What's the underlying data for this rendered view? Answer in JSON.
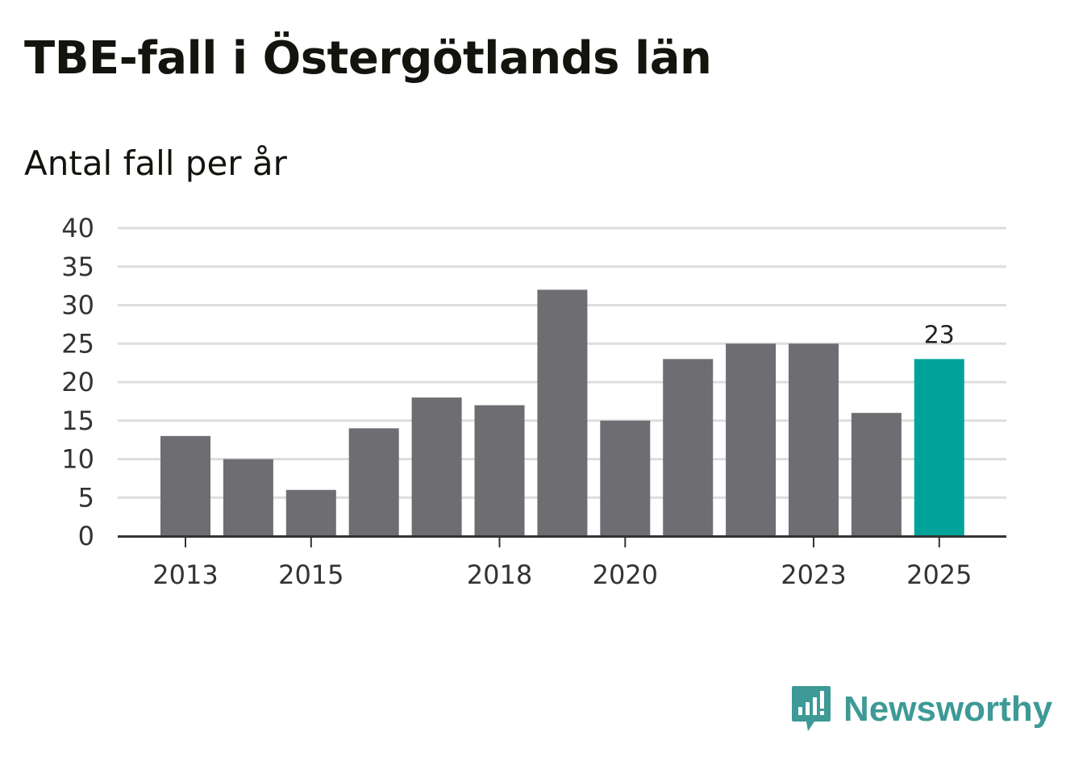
{
  "chart_data": {
    "type": "bar",
    "title": "TBE-fall i Östergötlands län",
    "subtitle": "Antal fall per år",
    "categories": [
      "2013",
      "2014",
      "2015",
      "2016",
      "2017",
      "2018",
      "2019",
      "2020",
      "2021",
      "2022",
      "2023",
      "2024",
      "2025"
    ],
    "values": [
      13,
      10,
      6,
      14,
      18,
      17,
      32,
      15,
      23,
      25,
      25,
      16,
      23
    ],
    "x_tick_labels": [
      "2013",
      "2015",
      "2018",
      "2020",
      "2023",
      "2025"
    ],
    "y_ticks": [
      0,
      5,
      10,
      15,
      20,
      25,
      30,
      35,
      40
    ],
    "ylim": [
      0,
      40
    ],
    "xlabel": "",
    "ylabel": "",
    "grid": true,
    "highlight": {
      "category": "2025",
      "label": "23"
    },
    "colors": {
      "bar": "#6e6d72",
      "highlight": "#00a39a",
      "grid": "#dddddd",
      "axis": "#333333"
    }
  },
  "brand": {
    "name": "Newsworthy",
    "icon": "newsworthy-logo-icon",
    "color": "#3d9a96"
  }
}
